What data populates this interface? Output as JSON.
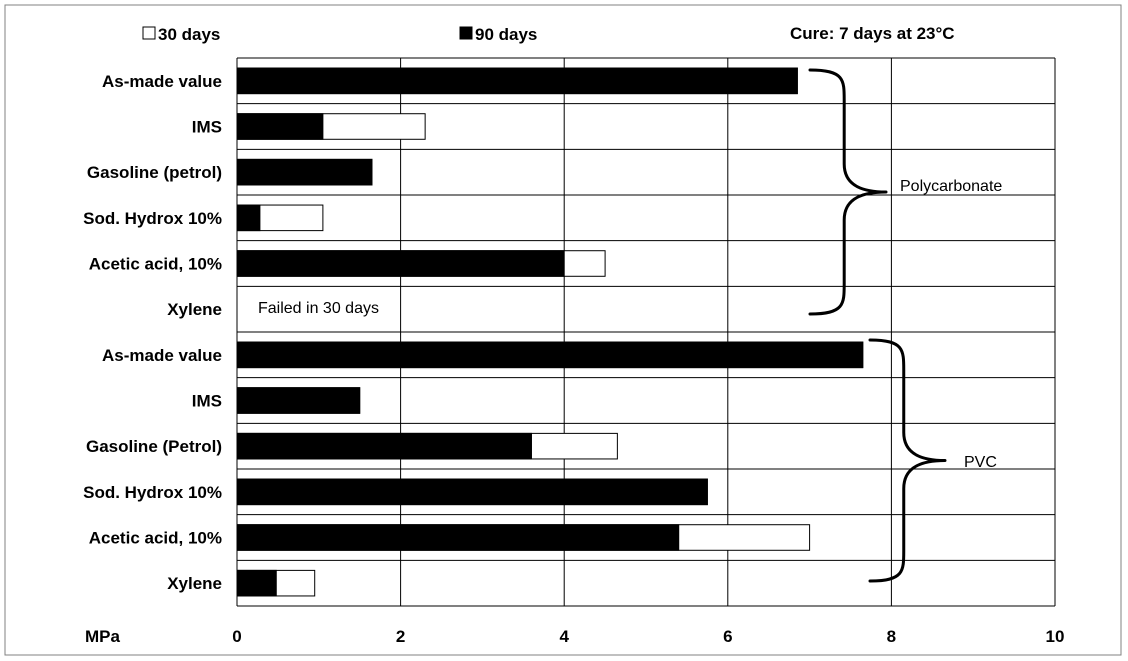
{
  "chart_data": {
    "type": "bar",
    "orientation": "horizontal",
    "stacking": "overlay",
    "categories": [
      "As-made value",
      "IMS",
      "Gasoline (petrol)",
      "Sod. Hydrox 10%",
      "Acetic acid, 10%",
      "Xylene",
      "As-made value",
      "IMS",
      "Gasoline (Petrol)",
      "Sod. Hydrox 10%",
      "Acetic acid, 10%",
      "Xylene"
    ],
    "series": [
      {
        "name": "30 days",
        "color": "#ffffff",
        "values": [
          6.85,
          2.3,
          1.65,
          1.05,
          4.5,
          null,
          7.65,
          1.5,
          4.65,
          5.75,
          7.0,
          0.95
        ]
      },
      {
        "name": "90 days",
        "color": "#000000",
        "values": [
          6.85,
          1.05,
          1.65,
          0.28,
          4.0,
          null,
          7.65,
          1.5,
          3.6,
          5.75,
          5.4,
          0.48
        ]
      }
    ],
    "xlabel": "MPa",
    "xlim": [
      0,
      10
    ],
    "xticks": [
      "0",
      "2",
      "4",
      "6",
      "8",
      "10"
    ],
    "grid": true,
    "legend_position": "top",
    "annotation_top_right": "Cure: 7 days at 23°C",
    "annotation_failed": "Failed in 30 days",
    "groups": [
      {
        "name": "Polycarbonate",
        "rows": [
          0,
          5
        ]
      },
      {
        "name": "PVC",
        "rows": [
          6,
          11
        ]
      }
    ]
  }
}
